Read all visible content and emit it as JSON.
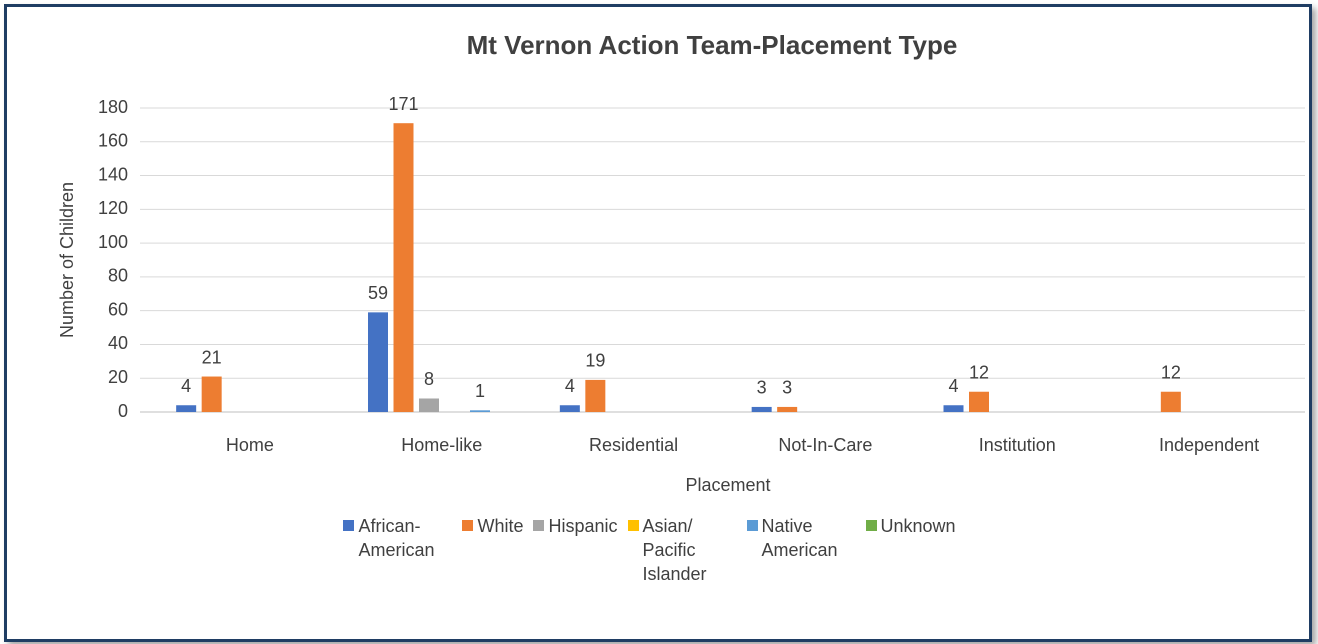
{
  "chart_data": {
    "type": "bar",
    "title": "Mt Vernon Action Team-Placement Type",
    "x_label": "Placement",
    "y_label": "Number of Children",
    "categories": [
      "Home",
      "Home-like",
      "Residential",
      "Not-In-Care",
      "Institution",
      "Independent"
    ],
    "series": [
      {
        "name": "African-American",
        "color": "#4472c4",
        "values": [
          4,
          59,
          4,
          3,
          4,
          null
        ]
      },
      {
        "name": "White",
        "color": "#ed7d31",
        "values": [
          21,
          171,
          19,
          3,
          12,
          12
        ]
      },
      {
        "name": "Hispanic",
        "color": "#a5a5a5",
        "values": [
          null,
          8,
          null,
          null,
          null,
          null
        ]
      },
      {
        "name": "Asian/ Pacific Islander",
        "color": "#ffc000",
        "values": [
          null,
          null,
          null,
          null,
          null,
          null
        ]
      },
      {
        "name": "Native American",
        "color": "#5b9bd5",
        "values": [
          null,
          1,
          null,
          null,
          null,
          null
        ]
      },
      {
        "name": "Unknown",
        "color": "#70ad47",
        "values": [
          null,
          null,
          null,
          null,
          null,
          null
        ]
      }
    ],
    "ylim": [
      0,
      180
    ],
    "yticks": [
      0,
      20,
      40,
      60,
      80,
      100,
      120,
      140,
      160,
      180
    ],
    "grid": true,
    "legend": "bottom"
  }
}
